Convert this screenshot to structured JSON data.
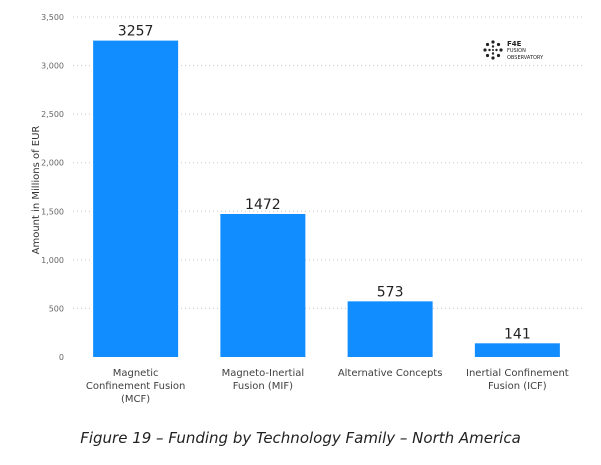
{
  "chart_data": {
    "type": "bar",
    "categories": [
      [
        "Magnetic",
        "Confinement Fusion",
        "(MCF)"
      ],
      [
        "Magneto-Inertial",
        "Fusion (MIF)"
      ],
      [
        "Alternative Concepts"
      ],
      [
        "Inertial Confinement",
        "Fusion (ICF)"
      ]
    ],
    "values": [
      3257,
      1472,
      573,
      141
    ],
    "data_labels": [
      "3257",
      "1472",
      "573",
      "141"
    ],
    "ylabel": "Amount in Millions of EUR",
    "ylim": [
      0,
      3500
    ],
    "yticks": [
      0,
      500,
      1000,
      1500,
      2000,
      2500,
      3000,
      3500
    ],
    "ytick_labels": [
      "0",
      "500",
      "1,000",
      "1,500",
      "2,000",
      "2,500",
      "3,000",
      "3,500"
    ],
    "grid": true,
    "bar_color": "#118DFF"
  },
  "logo": {
    "line1": "F4E",
    "line2": "FUSION",
    "line3": "OBSERVATORY"
  },
  "caption": "Figure 19 – Funding by Technology Family – North America"
}
